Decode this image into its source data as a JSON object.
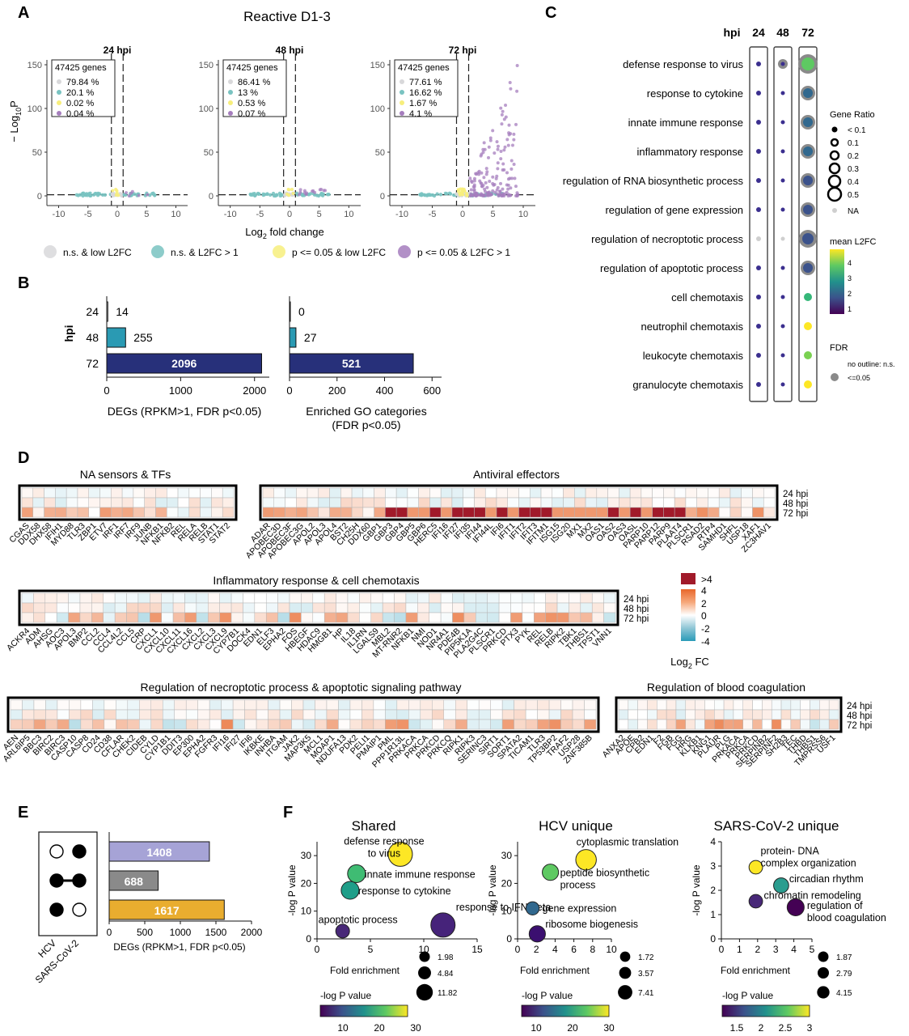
{
  "panels": {
    "A": {
      "letter": "A",
      "title": "Reactive D1-3",
      "ylabel_prefix": "− Log",
      "ylabel_sub": "10",
      "ylabel_suffix": "P",
      "xlabel_prefix": "Log",
      "xlabel_sub": "2",
      "xlabel_suffix": " fold change",
      "yticks": [
        "0",
        "50",
        "100",
        "150"
      ],
      "xticks": [
        "-10",
        "-5",
        "0",
        "5",
        "10"
      ],
      "legend": [
        {
          "label": "n.s. & low L2FC",
          "color": "#d8d8da"
        },
        {
          "label": "n.s. & L2FC > 1",
          "color": "#79c3c1"
        },
        {
          "label": "p <= 0.05 & low L2FC",
          "color": "#f7ee7c"
        },
        {
          "label": "p <= 0.05 & L2FC > 1",
          "color": "#a57dbd"
        }
      ],
      "subplots": [
        {
          "title": "24 hpi",
          "genes": "47425 genes",
          "pcts": [
            "79.84 %",
            "20.1 %",
            "0.02 %",
            "0.04 %"
          ]
        },
        {
          "title": "48 hpi",
          "genes": "47425 genes",
          "pcts": [
            "86.41 %",
            "13 %",
            "0.53 %",
            "0.07 %"
          ]
        },
        {
          "title": "72 hpi",
          "genes": "47425 genes",
          "pcts": [
            "77.61 %",
            "16.62 %",
            "1.67 %",
            "4.1 %"
          ]
        }
      ]
    },
    "B": {
      "letter": "B",
      "ylabel": "hpi",
      "categories": [
        "24",
        "48",
        "72"
      ],
      "left": {
        "xlabel": "DEGs (RPKM>1, FDR p<0.05)",
        "xticks": [
          "0",
          "1000",
          "2000"
        ],
        "values": [
          14,
          255,
          2096
        ],
        "labels": [
          "14",
          "255",
          "2096"
        ],
        "xmax": 2200
      },
      "right": {
        "xlabel1": "Enriched GO categories",
        "xlabel2": "(FDR p<0.05)",
        "xticks": [
          "0",
          "200",
          "400",
          "600"
        ],
        "values": [
          0,
          27,
          521
        ],
        "labels": [
          "0",
          "27",
          "521"
        ],
        "xmax": 640
      }
    },
    "C": {
      "letter": "C",
      "hpi_label": "hpi",
      "columns": [
        "24",
        "48",
        "72"
      ],
      "terms": [
        "defense response to virus",
        "response to cytokine",
        "innate immune response",
        "inflammatory response",
        "regulation of RNA biosynthetic process",
        "regulation of gene expression",
        "regulation of necroptotic process",
        "regulation of apoptotic process",
        "cell chemotaxis",
        "neutrophil chemotaxis",
        "leukocyte chemotaxis",
        "granulocyte chemotaxis"
      ],
      "gene_ratio_title": "Gene Ratio",
      "gene_ratio_labels": [
        "< 0.1",
        "0.1",
        "0.2",
        "0.3",
        "0.4",
        "0.5"
      ],
      "na_label": "NA",
      "l2fc_title": "mean L2FC",
      "l2fc_ticks": [
        "4",
        "3",
        "2",
        "1"
      ],
      "fdr_title": "FDR",
      "fdr_labels": [
        "no outline: n.s.",
        "<=0.05"
      ]
    },
    "D": {
      "letter": "D",
      "row_labels": [
        "24 hpi",
        "48 hpi",
        "72 hpi"
      ],
      "scale_labels": [
        ">4",
        "4",
        "2",
        "0",
        "-2",
        "-4"
      ],
      "scale_title": "Log",
      "scale_title_sub": "2",
      "scale_title_suffix": " FC",
      "groups": [
        {
          "title": "NA sensors & TFs",
          "genes": [
            "CGAS",
            "DDX58",
            "DHX58",
            "IFIH1",
            "MYD88",
            "TLR3",
            "ZBP1",
            "ETV7",
            "IRF1",
            "IRF7",
            "IRF9",
            "JUNB",
            "NFKB1",
            "NFKB2",
            "REL",
            "RELA",
            "RELB",
            "STAT1",
            "STAT2"
          ]
        },
        {
          "title": "Antiviral effectors",
          "genes": [
            "ADAR",
            "APOBEC3D",
            "APOBEC3F",
            "APOBEC3G",
            "APOL2",
            "APOL3",
            "APOL4",
            "BST2",
            "CH25H",
            "DDX60",
            "GBP1",
            "GBP3",
            "GBP4",
            "GBP5",
            "GBP6",
            "HERC5",
            "IFI16",
            "IFI27",
            "IFI35",
            "IFI44",
            "IFI44L",
            "IFI6",
            "IFIT1",
            "IFIT2",
            "IFIT3",
            "IFITM1",
            "ISG15",
            "ISG20",
            "MX1",
            "MX2",
            "OAS1",
            "OAS2",
            "OAS3",
            "OASL",
            "PARP10",
            "PARP12",
            "PARP9",
            "PLAAT4",
            "PLSCR1",
            "RSAD2",
            "RTP4",
            "SAMHD1",
            "SHFL",
            "USP18",
            "XAF1",
            "ZC3HAV1"
          ]
        },
        {
          "title": "Inflammatory response & cell chemotaxis",
          "genes": [
            "ACKR4",
            "ADM",
            "AHSG",
            "AOC3",
            "APOL3",
            "BMP2",
            "CCL2",
            "CCL4",
            "CCL4L2",
            "CCL5",
            "CRP",
            "CXCL1",
            "CXCL10",
            "CXCL11",
            "CXCL16",
            "CXCL2",
            "CXCL3",
            "CXCL9",
            "CYP7B1",
            "DOCK4",
            "EDN1",
            "ELF3",
            "EPHA2",
            "FOS",
            "HBEGF",
            "HDAC9",
            "HMGB1",
            "HP",
            "IL18",
            "IL1RN",
            "LGALS9",
            "MBL2",
            "MT-RNR2",
            "NFKB1",
            "NMI",
            "NOD1",
            "NR4A1",
            "PDE4B",
            "PIP5K1A",
            "PLA2G4C",
            "PLSCR1",
            "PRKCD",
            "PTX3",
            "PYK",
            "REL",
            "RELB",
            "RIPK2",
            "TBK1",
            "THBS1",
            "TPST1",
            "VNN1"
          ]
        },
        {
          "title": "Regulation of necroptotic process & apoptotic signaling pathway",
          "genes": [
            "AEN",
            "ARL6IP5",
            "BBC3",
            "BIRC2",
            "BIRC3",
            "CASP10",
            "CASP8",
            "CD24",
            "CD38",
            "CFLAR",
            "CHEK2",
            "CIDEB",
            "CYLD",
            "CYP1B1",
            "DDIT3",
            "EP300",
            "EPHA2",
            "FGFR3",
            "IFI16",
            "IFI27",
            "IFI6",
            "IKBKE",
            "INHBA",
            "ITGAM",
            "JAK2",
            "MAP3K5",
            "MCL1",
            "MOAP1",
            "NDUFA13",
            "PDK2",
            "PELI1",
            "PMAIP1",
            "PML",
            "PPP1R13L",
            "PRKACA",
            "PRKCA",
            "PRKCD",
            "PRKCQ",
            "RIPK1",
            "RIPK3",
            "SERINC3",
            "SIRT1",
            "SORT1",
            "SPATA2",
            "TICAM1",
            "TLR3",
            "TP53BP2",
            "TRAF2",
            "USP28",
            "ZNF385B"
          ]
        },
        {
          "title": "Regulation of blood coagulation",
          "genes": [
            "ANXA2",
            "APOE",
            "CPB2",
            "EDN1",
            "F2",
            "FGB",
            "FGG",
            "HRG",
            "KLKB1",
            "KNG1",
            "PLAUR",
            "PLG",
            "PRKACA",
            "PRKCA",
            "PRKCD",
            "SERPINB2",
            "SERPINF2",
            "SH2B3",
            "TEC",
            "THBD",
            "THBS1",
            "TMPRSS6",
            "USF1"
          ]
        }
      ]
    },
    "E": {
      "letter": "E",
      "xlabel": "DEGs (RPKM>1, FDR p<0.05)",
      "xticks": [
        "0",
        "500",
        "1000",
        "1500",
        "2000"
      ],
      "set_labels": [
        "HCV",
        "SARS-CoV-2"
      ],
      "bars": [
        {
          "value": 1408,
          "label": "1408",
          "color": "#a6a3d6"
        },
        {
          "value": 688,
          "label": "688",
          "color": "#8a8a8a"
        },
        {
          "value": 1617,
          "label": "1617",
          "color": "#e9ad2f"
        }
      ],
      "xmax": 2000
    },
    "F": {
      "letter": "F",
      "ylabel": "-log P value",
      "xlabel": "Fold enrichment",
      "cbar_label": "-log P value",
      "subplots": [
        {
          "title": "Shared",
          "xticks": [
            "0",
            "5",
            "10",
            "15"
          ],
          "yticks": [
            "0",
            "10",
            "20",
            "30"
          ],
          "points": [
            {
              "label": "defense response to virus",
              "x": 7.8,
              "y": 30.5,
              "size": 11.82,
              "color": "#fde725"
            },
            {
              "label": "innate immune response",
              "x": 3.7,
              "y": 23.5,
              "size": 4.84,
              "color": "#3fbc73"
            },
            {
              "label": "response to cytokine",
              "x": 3.1,
              "y": 17.5,
              "size": 4.84,
              "color": "#1f9e89"
            },
            {
              "label": "apoptotic process",
              "x": 2.4,
              "y": 2.8,
              "size": 1.98,
              "color": "#482878"
            },
            {
              "label": "response to IFN-beta",
              "x": 11.8,
              "y": 5.0,
              "size": 11.82,
              "color": "#46237a"
            }
          ],
          "size_labels": [
            "1.98",
            "4.84",
            "11.82"
          ],
          "cbar_ticks": [
            "10",
            "20",
            "30"
          ]
        },
        {
          "title": "HCV unique",
          "xticks": [
            "0",
            "2",
            "4",
            "6",
            "8",
            "10"
          ],
          "yticks": [
            "0",
            "10",
            "20",
            "30"
          ],
          "points": [
            {
              "label": "cytoplasmic translation",
              "x": 7.3,
              "y": 28.5,
              "size": 7.41,
              "color": "#fde725"
            },
            {
              "label": "peptide biosynthetic process",
              "x": 3.5,
              "y": 24.0,
              "size": 3.57,
              "color": "#5ec962"
            },
            {
              "label": "gene expression",
              "x": 1.6,
              "y": 11.0,
              "size": 1.72,
              "color": "#31688e"
            },
            {
              "label": "ribosome biogenesis",
              "x": 2.1,
              "y": 1.8,
              "size": 3.57,
              "color": "#3b0f70"
            }
          ],
          "size_labels": [
            "1.72",
            "3.57",
            "7.41"
          ],
          "cbar_ticks": [
            "10",
            "20",
            "30"
          ]
        },
        {
          "title": "SARS-CoV-2 unique",
          "xticks": [
            "0",
            "1",
            "2",
            "3",
            "4",
            "5"
          ],
          "yticks": [
            "0",
            "1",
            "2",
            "3",
            "4"
          ],
          "points": [
            {
              "label": "protein- DNA complex organization",
              "x": 1.9,
              "y": 2.95,
              "size": 1.87,
              "color": "#fde725"
            },
            {
              "label": "circadian rhythm",
              "x": 3.3,
              "y": 2.2,
              "size": 2.79,
              "color": "#2a9d8f"
            },
            {
              "label": "chromatin remodeling",
              "x": 1.9,
              "y": 1.55,
              "size": 1.87,
              "color": "#482878"
            },
            {
              "label": "regulation of blood coagulation",
              "x": 4.1,
              "y": 1.3,
              "size": 4.15,
              "color": "#440154"
            }
          ],
          "size_labels": [
            "1.87",
            "2.79",
            "4.15"
          ],
          "cbar_ticks": [
            "1.5",
            "2",
            "2.5",
            "3"
          ]
        }
      ]
    }
  },
  "chart_data": [
    {
      "type": "bar",
      "panel": "B-left",
      "categories": [
        "24",
        "48",
        "72"
      ],
      "values": [
        14,
        255,
        2096
      ],
      "xlabel": "DEGs (RPKM>1, FDR p<0.05)",
      "ylabel": "hpi"
    },
    {
      "type": "bar",
      "panel": "B-right",
      "categories": [
        "24",
        "48",
        "72"
      ],
      "values": [
        0,
        27,
        521
      ],
      "xlabel": "Enriched GO categories (FDR p<0.05)"
    },
    {
      "type": "bar",
      "panel": "E",
      "categories": [
        "HCV only",
        "shared",
        "SARS-CoV-2 only"
      ],
      "values": [
        1408,
        688,
        1617
      ],
      "xlabel": "DEGs (RPKM>1, FDR p<0.05)"
    },
    {
      "type": "scatter",
      "panel": "F-Shared",
      "xlabel": "Fold enrichment",
      "ylabel": "-log P value",
      "x": [
        7.8,
        3.7,
        3.1,
        2.4,
        11.8
      ],
      "y": [
        30.5,
        23.5,
        17.5,
        2.8,
        5.0
      ],
      "labels": [
        "defense response to virus",
        "innate immune response",
        "response to cytokine",
        "apoptotic process",
        "response to IFN-beta"
      ]
    },
    {
      "type": "scatter",
      "panel": "F-HCV unique",
      "xlabel": "Fold enrichment",
      "ylabel": "-log P value",
      "x": [
        7.3,
        3.5,
        1.6,
        2.1
      ],
      "y": [
        28.5,
        24.0,
        11.0,
        1.8
      ],
      "labels": [
        "cytoplasmic translation",
        "peptide biosynthetic process",
        "gene expression",
        "ribosome biogenesis"
      ]
    },
    {
      "type": "scatter",
      "panel": "F-SARS-CoV-2 unique",
      "xlabel": "Fold enrichment",
      "ylabel": "-log P value",
      "x": [
        1.9,
        3.3,
        1.9,
        4.1
      ],
      "y": [
        2.95,
        2.2,
        1.55,
        1.3
      ],
      "labels": [
        "protein- DNA complex organization",
        "circadian rhythm",
        "chromatin remodeling",
        "regulation of blood coagulation"
      ]
    }
  ]
}
